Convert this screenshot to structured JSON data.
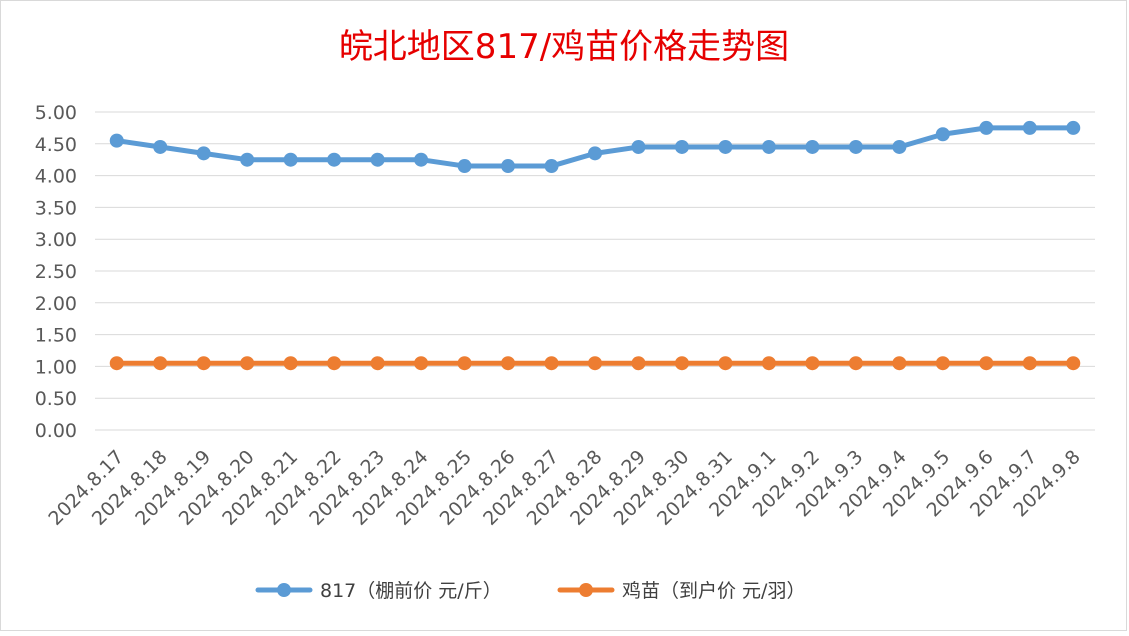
{
  "chart_data": {
    "type": "line",
    "title": "皖北地区817/鸡苗价格走势图",
    "xlabel": "",
    "ylabel": "",
    "ylim": [
      0,
      5
    ],
    "ytick_step": 0.5,
    "y_ticks": [
      "0.00",
      "0.50",
      "1.00",
      "1.50",
      "2.00",
      "2.50",
      "3.00",
      "3.50",
      "4.00",
      "4.50",
      "5.00"
    ],
    "grid": true,
    "legend_position": "bottom",
    "categories": [
      "2024.8.17",
      "2024.8.18",
      "2024.8.19",
      "2024.8.20",
      "2024.8.21",
      "2024.8.22",
      "2024.8.23",
      "2024.8.24",
      "2024.8.25",
      "2024.8.26",
      "2024.8.27",
      "2024.8.28",
      "2024.8.29",
      "2024.8.30",
      "2024.8.31",
      "2024.9.1",
      "2024.9.2",
      "2024.9.3",
      "2024.9.4",
      "2024.9.5",
      "2024.9.6",
      "2024.9.7",
      "2024.9.8"
    ],
    "series": [
      {
        "name": "817（棚前价 元/斤）",
        "color": "#5b9bd5",
        "values": [
          4.55,
          4.45,
          4.35,
          4.25,
          4.25,
          4.25,
          4.25,
          4.25,
          4.15,
          4.15,
          4.15,
          4.35,
          4.45,
          4.45,
          4.45,
          4.45,
          4.45,
          4.45,
          4.45,
          4.65,
          4.75,
          4.75,
          4.75
        ]
      },
      {
        "name": "鸡苗（到户价 元/羽）",
        "color": "#ed7d31",
        "values": [
          1.05,
          1.05,
          1.05,
          1.05,
          1.05,
          1.05,
          1.05,
          1.05,
          1.05,
          1.05,
          1.05,
          1.05,
          1.05,
          1.05,
          1.05,
          1.05,
          1.05,
          1.05,
          1.05,
          1.05,
          1.05,
          1.05,
          1.05
        ]
      }
    ]
  }
}
